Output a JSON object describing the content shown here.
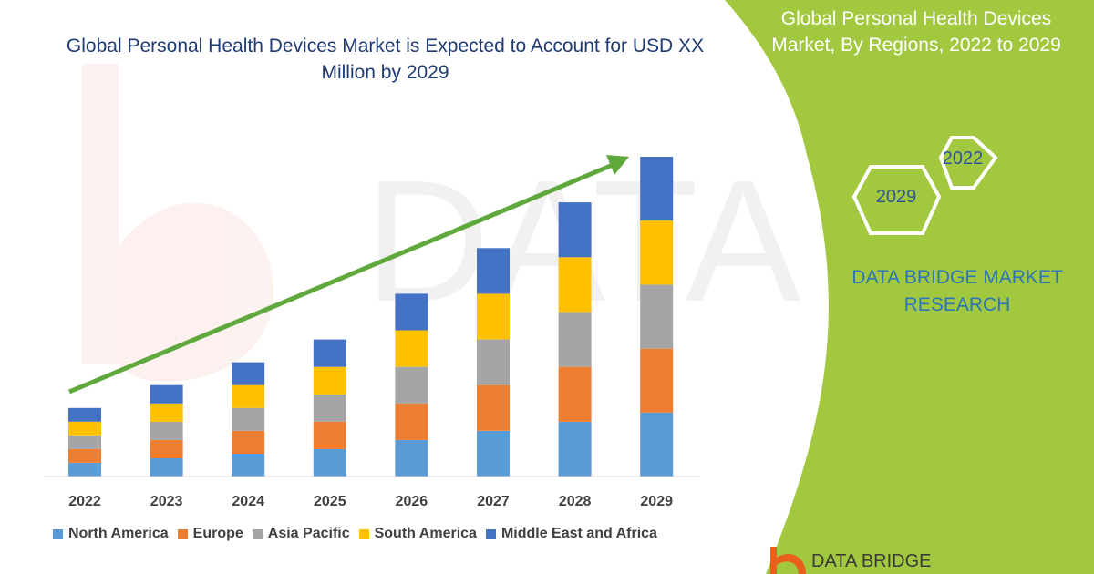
{
  "chart_data": {
    "type": "bar",
    "stacked": true,
    "title": "Global Personal Health Devices Market is Expected to Account for USD XX Million by 2029",
    "categories": [
      "2022",
      "2023",
      "2024",
      "2025",
      "2026",
      "2027",
      "2028",
      "2029"
    ],
    "series": [
      {
        "name": "North America",
        "color": "#5b9bd5",
        "values": [
          15,
          20,
          25,
          30,
          40,
          50,
          60,
          70
        ]
      },
      {
        "name": "Europe",
        "color": "#ed7d31",
        "values": [
          15,
          20,
          25,
          30,
          40,
          50,
          60,
          70
        ]
      },
      {
        "name": "Asia Pacific",
        "color": "#a5a5a5",
        "values": [
          15,
          20,
          25,
          30,
          40,
          50,
          60,
          70
        ]
      },
      {
        "name": "South America",
        "color": "#ffc000",
        "values": [
          15,
          20,
          25,
          30,
          40,
          50,
          60,
          70
        ]
      },
      {
        "name": "Middle East and Africa",
        "color": "#4472c4",
        "values": [
          15,
          20,
          25,
          30,
          40,
          50,
          60,
          70
        ]
      }
    ],
    "trend_arrow_color": "#5fa83c",
    "legend_position": "bottom",
    "grid": false,
    "ylim": [
      0,
      350
    ]
  },
  "side_panel": {
    "title": "Global Personal Health Devices Market, By Regions, 2022 to 2029",
    "hex_labels": [
      "2022",
      "2029"
    ],
    "brand": "DATA BRIDGE MARKET RESEARCH",
    "accent_color": "#a2c83f"
  },
  "footer": {
    "brand": "DATA BRIDGE"
  }
}
